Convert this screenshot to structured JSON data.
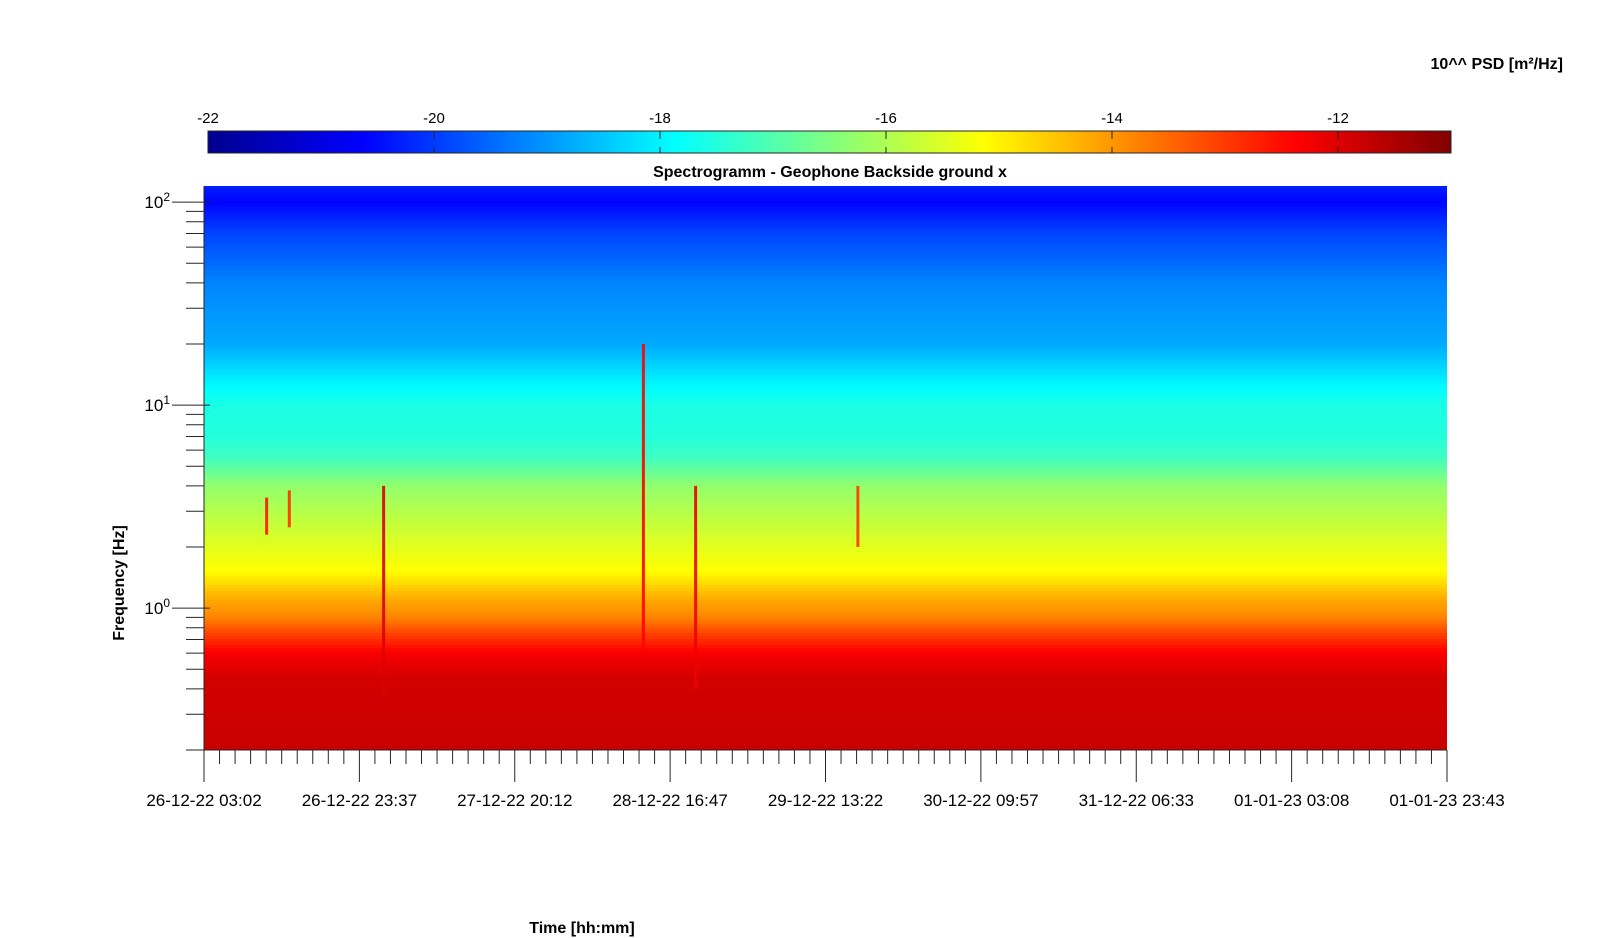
{
  "chart_data": {
    "type": "heatmap",
    "title": "Spectrogramm - Geophone Backside ground x",
    "xlabel": "Time [hh:mm]",
    "ylabel": "Frequency [Hz]",
    "x_tick_labels": [
      "26-12-22 03:02",
      "26-12-22 23:37",
      "27-12-22 20:12",
      "28-12-22 16:47",
      "29-12-22 13:22",
      "30-12-22 09:57",
      "31-12-22 06:33",
      "01-01-23 03:08",
      "01-01-23 23:43"
    ],
    "xlim": [
      "26-12-22 03:02",
      "01-01-23 23:43"
    ],
    "ylim": [
      0.2,
      120
    ],
    "y_scale": "log",
    "y_ticks": [
      {
        "value": 1,
        "base": "10",
        "exponent": "0"
      },
      {
        "value": 10,
        "base": "10",
        "exponent": "1"
      },
      {
        "value": 100,
        "base": "10",
        "exponent": "2"
      }
    ],
    "colorbar": {
      "label": "10^^ PSD [m²/Hz]",
      "placement": "top",
      "colormap": "jet",
      "range": [
        -22,
        -11
      ],
      "ticks": [
        "-22",
        "-20",
        "-18",
        "-16",
        "-14",
        "-12"
      ]
    },
    "psd_profile": {
      "frequency_hz": [
        0.2,
        0.45,
        0.6,
        0.75,
        0.9,
        1.1,
        1.5,
        2.5,
        4,
        5.5,
        7,
        10,
        13,
        20,
        40,
        70,
        100,
        120
      ],
      "log10_psd": [
        -11.8,
        -11.9,
        -12.3,
        -13.1,
        -13.8,
        -14.2,
        -15.1,
        -15.7,
        -16.3,
        -17.2,
        -17.5,
        -17.6,
        -18.0,
        -18.8,
        -19.2,
        -19.9,
        -20.6,
        -20.3
      ]
    },
    "transient_events": [
      {
        "time": "26-12-22 11:20",
        "f_low_hz": 2.3,
        "f_high_hz": 3.5,
        "log10_psd": -12.6
      },
      {
        "time": "26-12-22 14:20",
        "f_low_hz": 2.5,
        "f_high_hz": 3.8,
        "log10_psd": -12.9
      },
      {
        "time": "27-12-22 02:50",
        "f_low_hz": 0.35,
        "f_high_hz": 4.0,
        "log10_psd": -12.0
      },
      {
        "time": "28-12-22 13:15",
        "f_low_hz": 0.6,
        "f_high_hz": 20.0,
        "log10_psd": -12.4
      },
      {
        "time": "28-12-22 20:10",
        "f_low_hz": 0.4,
        "f_high_hz": 4.0,
        "log10_psd": -12.2
      },
      {
        "time": "29-12-22 17:40",
        "f_low_hz": 2.0,
        "f_high_hz": 4.0,
        "log10_psd": -13.0
      }
    ]
  }
}
